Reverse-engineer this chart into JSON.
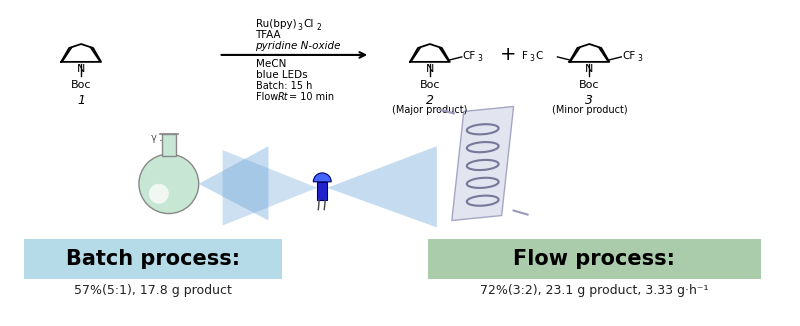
{
  "fig_width": 8.0,
  "fig_height": 3.26,
  "dpi": 100,
  "bg_color": "#ffffff",
  "reaction_conditions_line1": "Ru(bpy)",
  "reaction_conditions_line2": "TFAA",
  "reaction_conditions_line3": "pyridine N-oxide",
  "reaction_conditions_line4": "MeCN",
  "reaction_conditions_line5": "blue LEDs",
  "reaction_conditions_line6": "Batch: 15 h",
  "reaction_conditions_line7": "Flow: Rt = 10 min",
  "compound1_label": "1",
  "compound2_label": "2",
  "compound2_sub": "(Major product)",
  "compound3_label": "3",
  "compound3_sub": "(Minor product)",
  "plus_sign": "+",
  "batch_label": "Batch process:",
  "batch_sublabel": "57%(5:1), 17.8 g product",
  "batch_box_color": "#ADD8E6",
  "flow_label": "Flow process:",
  "flow_sublabel": "72%(3:2), 23.1 g product, 3.33 g·h⁻¹",
  "flow_box_color": "#8fbc8f",
  "arrow_color": "#333333",
  "beam_color": "#5b9bd5",
  "flask_color": "#c8e6d4",
  "flask_edge": "#888888",
  "led_color": "#2222cc",
  "reactor_color": "#dde0ee",
  "reactor_edge": "#9999bb"
}
